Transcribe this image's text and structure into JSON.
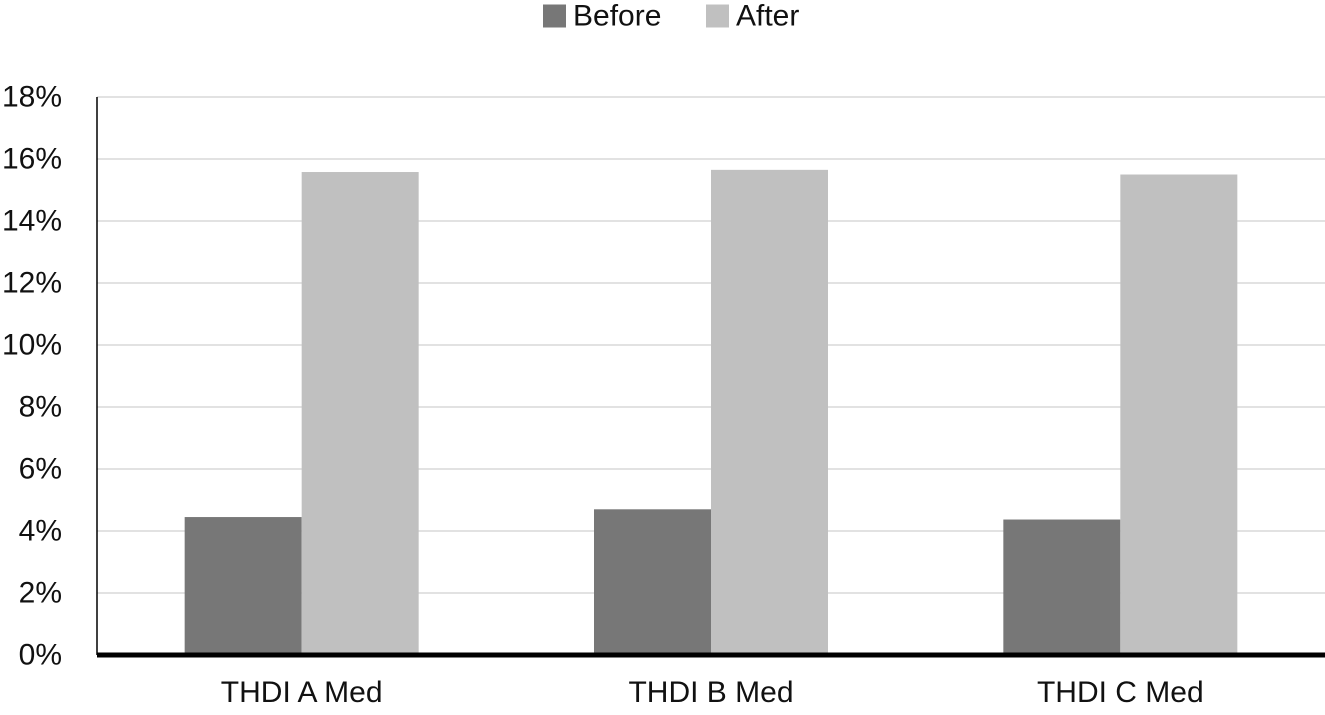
{
  "chart_data": {
    "type": "bar",
    "title": "",
    "xlabel": "",
    "ylabel": "",
    "categories": [
      "THDI A Med",
      "THDI B Med",
      "THDI C Med"
    ],
    "series": [
      {
        "name": "Before",
        "values": [
          4.45,
          4.7,
          4.37
        ]
      },
      {
        "name": "After",
        "values": [
          15.58,
          15.65,
          15.5
        ]
      }
    ],
    "ylim": [
      0,
      18
    ],
    "yticks": [
      0,
      2,
      4,
      6,
      8,
      10,
      12,
      14,
      16,
      18
    ],
    "ytick_labels": [
      "0%",
      "2%",
      "4%",
      "6%",
      "8%",
      "10%",
      "12%",
      "14%",
      "16%",
      "18%"
    ],
    "grid": "horizontal",
    "legend": "top-center",
    "colors": {
      "Before": "#777777",
      "After": "#c0c0c0",
      "grid": "#d9d9d9",
      "axis": "#000000"
    }
  }
}
